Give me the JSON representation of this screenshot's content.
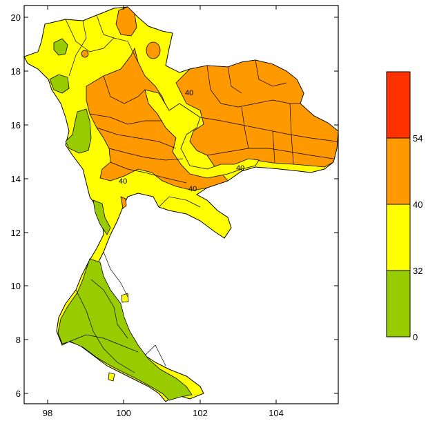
{
  "map": {
    "x_ticks": [
      "98",
      "100",
      "102",
      "104"
    ],
    "y_ticks": [
      "20",
      "18",
      "16",
      "14",
      "12",
      "10",
      "8",
      "6"
    ],
    "contour_labels": [
      "40",
      "40",
      "40",
      "40"
    ]
  },
  "legend": {
    "levels": [
      {
        "label": "0",
        "color": "#99cc00"
      },
      {
        "label": "32",
        "color": "#ffff00"
      },
      {
        "label": "40",
        "color": "#ff9900"
      },
      {
        "label": "54",
        "color": "#ff3300"
      }
    ]
  },
  "colors": {
    "low": "#99cc00",
    "mid": "#ffff00",
    "high": "#ff9900",
    "top": "#ff3300",
    "border": "#000000"
  }
}
